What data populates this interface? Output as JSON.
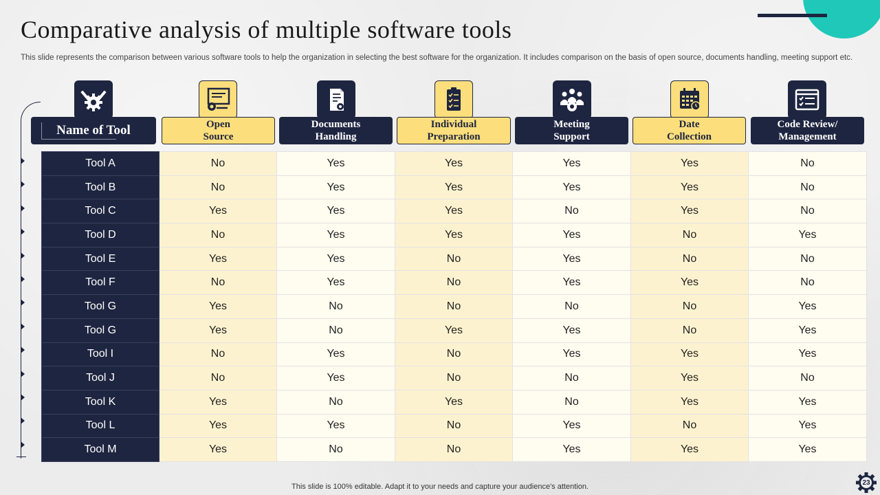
{
  "title": "Comparative analysis of multiple software tools",
  "subtitle": "This slide represents the comparison between various software tools to help the organization in selecting the best software for the organization. It includes comparison on the basis of open source, documents handling, meeting support etc.",
  "name_header": "Name of  Tool",
  "columns": [
    {
      "label": "Open\nSource",
      "style": "yellow",
      "icon": "presentation-gear-icon"
    },
    {
      "label": "Documents\nHandling",
      "style": "dark",
      "icon": "document-icon"
    },
    {
      "label": "Individual\nPreparation",
      "style": "yellow",
      "icon": "clipboard-checklist-icon"
    },
    {
      "label": "Meeting\nSupport",
      "style": "dark",
      "icon": "team-gear-icon"
    },
    {
      "label": "Date\nCollection",
      "style": "yellow",
      "icon": "calendar-icon"
    },
    {
      "label": "Code Review/\nManagement",
      "style": "dark",
      "icon": "checklist-window-icon"
    }
  ],
  "rows": [
    {
      "tool": "Tool A",
      "values": [
        "No",
        "Yes",
        "Yes",
        "Yes",
        "Yes",
        "No"
      ]
    },
    {
      "tool": "Tool B",
      "values": [
        "No",
        "Yes",
        "Yes",
        "Yes",
        "Yes",
        "No"
      ]
    },
    {
      "tool": "Tool C",
      "values": [
        "Yes",
        "Yes",
        "Yes",
        "No",
        "Yes",
        "No"
      ]
    },
    {
      "tool": "Tool D",
      "values": [
        "No",
        "Yes",
        "Yes",
        "Yes",
        "No",
        "Yes"
      ]
    },
    {
      "tool": "Tool E",
      "values": [
        "Yes",
        "Yes",
        "No",
        "Yes",
        "No",
        "No"
      ]
    },
    {
      "tool": "Tool F",
      "values": [
        "No",
        "Yes",
        "No",
        "Yes",
        "Yes",
        "No"
      ]
    },
    {
      "tool": "Tool G",
      "values": [
        "Yes",
        "No",
        "No",
        "No",
        "No",
        "Yes"
      ]
    },
    {
      "tool": "Tool G",
      "values": [
        "Yes",
        "No",
        "Yes",
        "Yes",
        "No",
        "Yes"
      ]
    },
    {
      "tool": "Tool I",
      "values": [
        "No",
        "Yes",
        "No",
        "Yes",
        "Yes",
        "Yes"
      ]
    },
    {
      "tool": "Tool J",
      "values": [
        "No",
        "Yes",
        "No",
        "No",
        "Yes",
        "No"
      ]
    },
    {
      "tool": "Tool K",
      "values": [
        "Yes",
        "No",
        "Yes",
        "No",
        "Yes",
        "Yes"
      ]
    },
    {
      "tool": "Tool L",
      "values": [
        "Yes",
        "Yes",
        "No",
        "Yes",
        "No",
        "Yes"
      ]
    },
    {
      "tool": "Tool M",
      "values": [
        "Yes",
        "No",
        "No",
        "Yes",
        "Yes",
        "Yes"
      ]
    }
  ],
  "footer": "This slide is 100% editable. Adapt it to your needs and capture your audience's attention.",
  "page_number": "23",
  "colors": {
    "navy": "#1e2540",
    "yellow": "#fcdf7c",
    "teal": "#1fc8b8"
  }
}
